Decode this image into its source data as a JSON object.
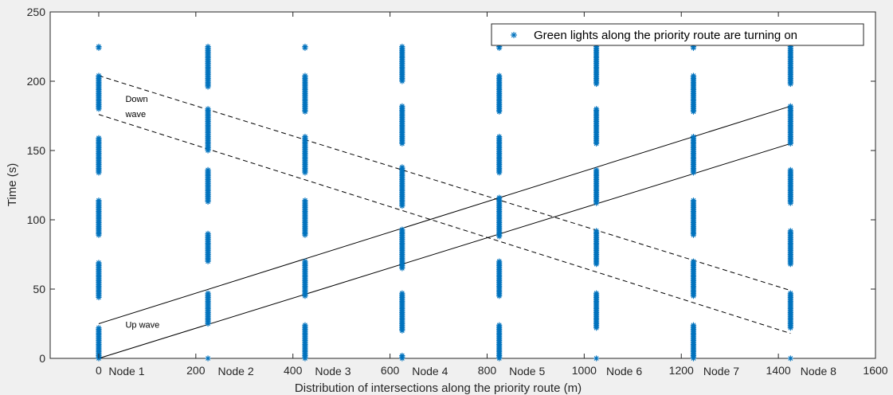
{
  "chart_data": {
    "type": "scatter",
    "title": "",
    "xlabel": "Distribution of intersections along the priority route (m)",
    "ylabel": "Time (s)",
    "xlim": [
      -100,
      1600
    ],
    "ylim": [
      0,
      250
    ],
    "xticks": [
      0,
      200,
      400,
      600,
      800,
      1000,
      1200,
      1400,
      1600
    ],
    "yticks": [
      0,
      50,
      100,
      150,
      200,
      250
    ],
    "grid": false,
    "legend_position": "top-right",
    "legend": [
      "Green lights along the priority route are turning on"
    ],
    "colors": {
      "series": "#0072bd",
      "lines": "#000000",
      "axes": "#262626",
      "plot_bg": "#ffffff",
      "figure_bg": "#f0f0f0"
    },
    "nodes": [
      {
        "label": "Node 1",
        "x": 0
      },
      {
        "label": "Node 2",
        "x": 225
      },
      {
        "label": "Node 3",
        "x": 425
      },
      {
        "label": "Node 4",
        "x": 625
      },
      {
        "label": "Node 5",
        "x": 825
      },
      {
        "label": "Node 6",
        "x": 1025
      },
      {
        "label": "Node 7",
        "x": 1225
      },
      {
        "label": "Node 8",
        "x": 1425
      }
    ],
    "series": [
      {
        "name": "Green lights along the priority route are turning on",
        "marker": "*",
        "green_intervals": [
          {
            "x": 0,
            "ranges": [
              [
                0,
                22
              ],
              [
                44,
                69
              ],
              [
                89,
                114
              ],
              [
                134,
                159
              ],
              [
                180,
                204
              ],
              [
                224,
                225
              ]
            ]
          },
          {
            "x": 225,
            "ranges": [
              [
                0,
                0
              ],
              [
                25,
                47
              ],
              [
                70,
                90
              ],
              [
                113,
                136
              ],
              [
                150,
                180
              ],
              [
                196,
                225
              ]
            ]
          },
          {
            "x": 425,
            "ranges": [
              [
                0,
                24
              ],
              [
                45,
                70
              ],
              [
                89,
                114
              ],
              [
                134,
                160
              ],
              [
                178,
                204
              ],
              [
                224,
                225
              ]
            ]
          },
          {
            "x": 625,
            "ranges": [
              [
                0,
                2
              ],
              [
                20,
                47
              ],
              [
                65,
                93
              ],
              [
                110,
                138
              ],
              [
                155,
                182
              ],
              [
                200,
                225
              ]
            ]
          },
          {
            "x": 825,
            "ranges": [
              [
                0,
                24
              ],
              [
                45,
                70
              ],
              [
                88,
                116
              ],
              [
                134,
                160
              ],
              [
                178,
                204
              ],
              [
                224,
                225
              ]
            ]
          },
          {
            "x": 1025,
            "ranges": [
              [
                0,
                0
              ],
              [
                22,
                47
              ],
              [
                68,
                92
              ],
              [
                112,
                136
              ],
              [
                155,
                180
              ],
              [
                198,
                225
              ]
            ]
          },
          {
            "x": 1225,
            "ranges": [
              [
                0,
                24
              ],
              [
                45,
                70
              ],
              [
                89,
                114
              ],
              [
                134,
                160
              ],
              [
                178,
                204
              ],
              [
                224,
                225
              ]
            ]
          },
          {
            "x": 1425,
            "ranges": [
              [
                0,
                0
              ],
              [
                22,
                47
              ],
              [
                68,
                92
              ],
              [
                112,
                136
              ],
              [
                155,
                182
              ],
              [
                198,
                225
              ]
            ]
          }
        ]
      }
    ],
    "lines": [
      {
        "role": "up-wave-lower",
        "style": "solid",
        "points": [
          [
            0,
            0
          ],
          [
            1425,
            155
          ]
        ]
      },
      {
        "role": "up-wave-upper",
        "style": "solid",
        "points": [
          [
            0,
            25
          ],
          [
            1425,
            182
          ]
        ]
      },
      {
        "role": "down-wave-upper",
        "style": "dashed",
        "points": [
          [
            0,
            204
          ],
          [
            1425,
            49
          ]
        ]
      },
      {
        "role": "down-wave-lower",
        "style": "dashed",
        "points": [
          [
            0,
            176
          ],
          [
            1425,
            18
          ]
        ]
      }
    ],
    "annotations": [
      {
        "text": "Down",
        "x": 55,
        "y": 185
      },
      {
        "text": "wave",
        "x": 55,
        "y": 174
      },
      {
        "text": "Up wave",
        "x": 55,
        "y": 22
      }
    ]
  }
}
